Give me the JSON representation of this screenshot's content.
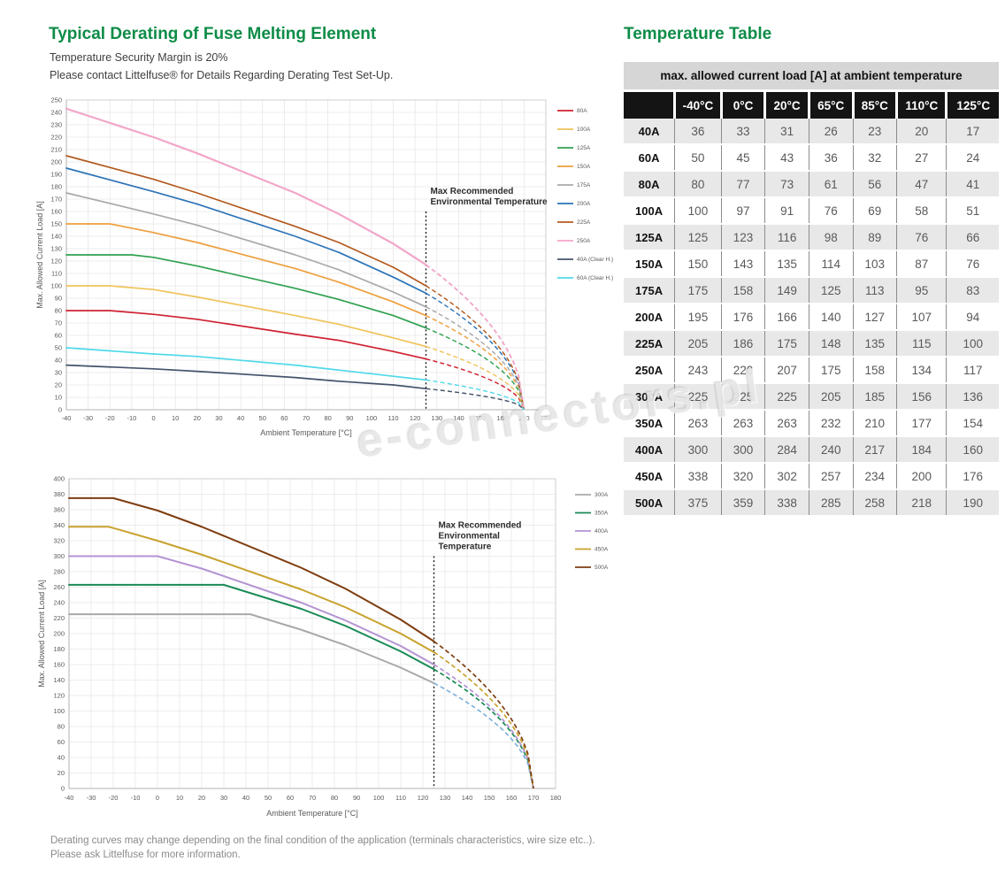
{
  "header": {
    "title": "Typical Derating of Fuse Melting Element",
    "subtitle1": "Temperature Security Margin is 20%",
    "subtitle2": "Please contact Littelfuse® for Details Regarding Derating Test Set-Up."
  },
  "footer": {
    "line1": "Derating curves may change depending on the final condition of the application (terminals characteristics, wire size etc..).",
    "line2": "Please ask Littelfuse for more information."
  },
  "watermark": "e-connectors.pl",
  "colors": {
    "brand_green": "#0d8c47",
    "table_header_bg": "#141414",
    "table_band_bg": "#d6d6d6",
    "row_alt_bg": "#e8e8e8"
  },
  "table": {
    "title": "Temperature Table",
    "band": "max. allowed current load [A] at ambient temperature",
    "col_headers": [
      "",
      "-40°C",
      "0°C",
      "20°C",
      "65°C",
      "85°C",
      "110°C",
      "125°C"
    ],
    "col_widths_pct": [
      13.6,
      12.4,
      11.7,
      11.7,
      11.7,
      11.7,
      13.3,
      13.9
    ],
    "rows": [
      {
        "label": "40A",
        "values": [
          36,
          33,
          31,
          26,
          23,
          20,
          17
        ]
      },
      {
        "label": "60A",
        "values": [
          50,
          45,
          43,
          36,
          32,
          27,
          24
        ]
      },
      {
        "label": "80A",
        "values": [
          80,
          77,
          73,
          61,
          56,
          47,
          41
        ]
      },
      {
        "label": "100A",
        "values": [
          100,
          97,
          91,
          76,
          69,
          58,
          51
        ]
      },
      {
        "label": "125A",
        "values": [
          125,
          123,
          116,
          98,
          89,
          76,
          66
        ]
      },
      {
        "label": "150A",
        "values": [
          150,
          143,
          135,
          114,
          103,
          87,
          76
        ]
      },
      {
        "label": "175A",
        "values": [
          175,
          158,
          149,
          125,
          113,
          95,
          83
        ]
      },
      {
        "label": "200A",
        "values": [
          195,
          176,
          166,
          140,
          127,
          107,
          94
        ]
      },
      {
        "label": "225A",
        "values": [
          205,
          186,
          175,
          148,
          135,
          115,
          100
        ]
      },
      {
        "label": "250A",
        "values": [
          243,
          220,
          207,
          175,
          158,
          134,
          117
        ]
      },
      {
        "label": "300A",
        "values": [
          225,
          225,
          225,
          205,
          185,
          156,
          136
        ]
      },
      {
        "label": "350A",
        "values": [
          263,
          263,
          263,
          232,
          210,
          177,
          154
        ]
      },
      {
        "label": "400A",
        "values": [
          300,
          300,
          284,
          240,
          217,
          184,
          160
        ]
      },
      {
        "label": "450A",
        "values": [
          338,
          320,
          302,
          257,
          234,
          200,
          176
        ]
      },
      {
        "label": "500A",
        "values": [
          375,
          359,
          338,
          285,
          258,
          218,
          190
        ]
      }
    ]
  },
  "chart_data": [
    {
      "type": "line",
      "title": "",
      "xlabel": "Ambient Temperature [°C]",
      "ylabel": "Max. Allowed Current Load [A]",
      "xlim": [
        -40,
        180
      ],
      "ylim": [
        0,
        250
      ],
      "xticks": [
        -40,
        -30,
        -20,
        -10,
        0,
        10,
        20,
        30,
        40,
        50,
        60,
        70,
        80,
        90,
        100,
        110,
        120,
        130,
        140,
        150,
        160,
        170,
        180
      ],
      "yticks": [
        0,
        10,
        20,
        30,
        40,
        50,
        60,
        70,
        80,
        90,
        100,
        110,
        120,
        130,
        140,
        150,
        160,
        170,
        180,
        190,
        200,
        210,
        220,
        230,
        240,
        250
      ],
      "grid": true,
      "legend_position": "right",
      "vline": {
        "x": 125,
        "y_top": 160
      },
      "annotation_lines": [
        "Max Recommended",
        "Environmental Temperature"
      ],
      "dash_from": 125,
      "dash_to": 170,
      "series": [
        {
          "name": "80A",
          "color": "#cf2030",
          "points": [
            [
              -40,
              80
            ],
            [
              -20,
              80
            ],
            [
              0,
              77
            ],
            [
              20,
              73
            ],
            [
              65,
              61
            ],
            [
              85,
              56
            ],
            [
              110,
              47
            ],
            [
              125,
              41
            ]
          ]
        },
        {
          "name": "100A",
          "color": "#f0c35a",
          "points": [
            [
              -40,
              100
            ],
            [
              -20,
              100
            ],
            [
              0,
              97
            ],
            [
              20,
              91
            ],
            [
              65,
              76
            ],
            [
              85,
              69
            ],
            [
              110,
              58
            ],
            [
              125,
              51
            ]
          ]
        },
        {
          "name": "125A",
          "color": "#2fa14f",
          "points": [
            [
              -40,
              125
            ],
            [
              -10,
              125
            ],
            [
              0,
              123
            ],
            [
              20,
              116
            ],
            [
              65,
              98
            ],
            [
              85,
              89
            ],
            [
              110,
              76
            ],
            [
              125,
              66
            ]
          ]
        },
        {
          "name": "150A",
          "color": "#ee9f3d",
          "points": [
            [
              -40,
              150
            ],
            [
              -20,
              150
            ],
            [
              0,
              143
            ],
            [
              20,
              135
            ],
            [
              65,
              114
            ],
            [
              85,
              103
            ],
            [
              110,
              87
            ],
            [
              125,
              76
            ]
          ]
        },
        {
          "name": "175A",
          "color": "#a9a9a9",
          "points": [
            [
              -40,
              175
            ],
            [
              0,
              158
            ],
            [
              20,
              149
            ],
            [
              65,
              125
            ],
            [
              85,
              113
            ],
            [
              110,
              95
            ],
            [
              125,
              83
            ]
          ]
        },
        {
          "name": "200A",
          "color": "#2c74b8",
          "points": [
            [
              -40,
              195
            ],
            [
              0,
              176
            ],
            [
              20,
              166
            ],
            [
              65,
              140
            ],
            [
              85,
              127
            ],
            [
              110,
              107
            ],
            [
              125,
              94
            ]
          ]
        },
        {
          "name": "225A",
          "color": "#b35a1e",
          "points": [
            [
              -40,
              205
            ],
            [
              0,
              186
            ],
            [
              20,
              175
            ],
            [
              65,
              148
            ],
            [
              85,
              135
            ],
            [
              110,
              115
            ],
            [
              125,
              100
            ]
          ]
        },
        {
          "name": "250A",
          "color": "#f2a6c9",
          "width": 2.2,
          "points": [
            [
              -40,
              243
            ],
            [
              0,
              220
            ],
            [
              20,
              207
            ],
            [
              65,
              175
            ],
            [
              85,
              158
            ],
            [
              110,
              134
            ],
            [
              125,
              117
            ]
          ]
        },
        {
          "name": "40A (Clear H.)",
          "color": "#44536a",
          "points": [
            [
              -40,
              36
            ],
            [
              0,
              33
            ],
            [
              20,
              31
            ],
            [
              65,
              26
            ],
            [
              85,
              23
            ],
            [
              110,
              20
            ],
            [
              125,
              17
            ]
          ]
        },
        {
          "name": "60A (Clear H.)",
          "color": "#4fd9e9",
          "points": [
            [
              -40,
              50
            ],
            [
              0,
              45
            ],
            [
              20,
              43
            ],
            [
              65,
              36
            ],
            [
              85,
              32
            ],
            [
              110,
              27
            ],
            [
              125,
              24
            ]
          ]
        }
      ]
    },
    {
      "type": "line",
      "title": "",
      "xlabel": "Ambient Temperature [°C]",
      "ylabel": "Max. Allowed Current Load [A]",
      "xlim": [
        -40,
        180
      ],
      "ylim": [
        0,
        400
      ],
      "xticks": [
        -40,
        -30,
        -20,
        -10,
        0,
        10,
        20,
        30,
        40,
        50,
        60,
        70,
        80,
        90,
        100,
        110,
        120,
        130,
        140,
        150,
        160,
        170,
        180
      ],
      "yticks": [
        0,
        20,
        40,
        60,
        80,
        100,
        120,
        140,
        160,
        180,
        200,
        220,
        240,
        260,
        280,
        300,
        320,
        340,
        360,
        380,
        400
      ],
      "grid": true,
      "legend_position": "right",
      "vline": {
        "x": 125,
        "y_top": 300
      },
      "annotation_lines": [
        "Max Recommended",
        "Environmental",
        "Temperature"
      ],
      "dash_from": 125,
      "dash_to": 170,
      "series": [
        {
          "name": "300A",
          "color": "#a9a9a9",
          "dash_color": "#7fb3de",
          "points": [
            [
              -40,
              225
            ],
            [
              42,
              225
            ],
            [
              65,
              205
            ],
            [
              85,
              185
            ],
            [
              110,
              156
            ],
            [
              125,
              136
            ]
          ]
        },
        {
          "name": "350A",
          "color": "#198a55",
          "points": [
            [
              -40,
              263
            ],
            [
              30,
              263
            ],
            [
              65,
              232
            ],
            [
              85,
              210
            ],
            [
              110,
              177
            ],
            [
              125,
              154
            ]
          ]
        },
        {
          "name": "400A",
          "color": "#b493d3",
          "points": [
            [
              -40,
              300
            ],
            [
              0,
              300
            ],
            [
              20,
              284
            ],
            [
              65,
              240
            ],
            [
              85,
              217
            ],
            [
              110,
              184
            ],
            [
              125,
              160
            ]
          ]
        },
        {
          "name": "450A",
          "color": "#c9a22d",
          "points": [
            [
              -40,
              338
            ],
            [
              -22,
              338
            ],
            [
              0,
              320
            ],
            [
              20,
              302
            ],
            [
              65,
              257
            ],
            [
              85,
              234
            ],
            [
              110,
              200
            ],
            [
              125,
              176
            ]
          ]
        },
        {
          "name": "500A",
          "color": "#7f3d10",
          "points": [
            [
              -40,
              375
            ],
            [
              -20,
              375
            ],
            [
              0,
              359
            ],
            [
              20,
              338
            ],
            [
              65,
              285
            ],
            [
              85,
              258
            ],
            [
              110,
              218
            ],
            [
              125,
              190
            ]
          ]
        }
      ]
    }
  ]
}
